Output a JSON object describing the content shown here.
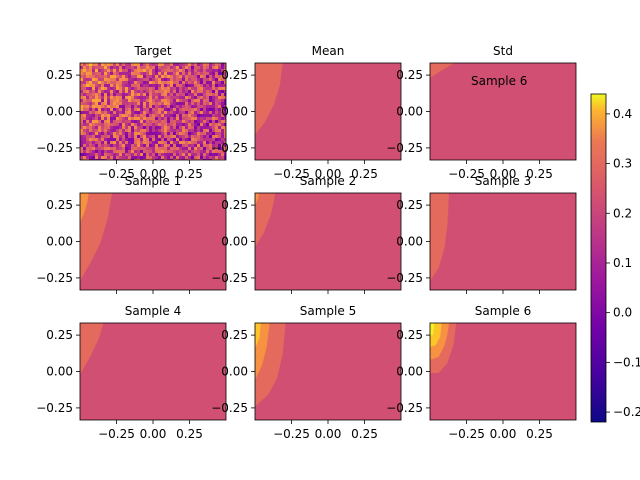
{
  "chart_data": {
    "type": "heatmap",
    "extent": {
      "x": [
        -0.5,
        0.5
      ],
      "y": [
        -0.333,
        0.333
      ]
    },
    "xticks": [
      -0.25,
      0.0,
      0.25
    ],
    "xtick_labels": [
      "−0.25",
      "0.00",
      "0.25"
    ],
    "yticks": [
      0.25,
      0.0,
      -0.25
    ],
    "ytick_labels": [
      "0.25",
      "0.00",
      "−0.25"
    ],
    "colormap": "plasma",
    "colorbar": {
      "range": [
        -0.22,
        0.44
      ],
      "ticks": [
        0.4,
        0.3,
        0.2,
        0.1,
        0.0,
        -0.1,
        -0.2
      ],
      "tick_labels": [
        "0.4",
        "0.3",
        "0.2",
        "0.1",
        "0.0",
        "−0.1",
        "−0.2"
      ]
    },
    "stray_label": "Sample 6",
    "panels": [
      {
        "title": "Target",
        "row": 0,
        "col": 0,
        "kind": "noise",
        "base": 0.1,
        "spread": 0.16,
        "show_xtick_labels": true,
        "levels": [],
        "boundaries": []
      },
      {
        "title": "Mean",
        "row": 0,
        "col": 1,
        "kind": "contour",
        "base": 0.13,
        "show_xtick_labels": true,
        "levels": [
          0.19
        ],
        "boundaries": [
          [
            [
              -0.5,
              -0.16
            ],
            [
              -0.43,
              -0.07
            ],
            [
              -0.37,
              0.05
            ],
            [
              -0.33,
              0.18
            ],
            [
              -0.31,
              0.333
            ]
          ]
        ]
      },
      {
        "title": "Std",
        "row": 0,
        "col": 2,
        "kind": "contour",
        "base": 0.13,
        "show_xtick_labels": true,
        "levels": [
          0.19
        ],
        "boundaries": [
          [
            [
              -0.5,
              0.23
            ],
            [
              -0.44,
              0.27
            ],
            [
              -0.37,
              0.31
            ],
            [
              -0.33,
              0.333
            ]
          ]
        ]
      },
      {
        "title": "Sample 1",
        "row": 1,
        "col": 0,
        "kind": "contour",
        "base": 0.13,
        "show_xtick_labels": false,
        "levels": [
          0.19,
          0.27
        ],
        "boundaries": [
          [
            [
              -0.5,
              -0.27
            ],
            [
              -0.43,
              -0.15
            ],
            [
              -0.36,
              -0.01
            ],
            [
              -0.31,
              0.16
            ],
            [
              -0.28,
              0.333
            ]
          ],
          [
            [
              -0.5,
              0.13
            ],
            [
              -0.47,
              0.2
            ],
            [
              -0.45,
              0.27
            ],
            [
              -0.44,
              0.333
            ]
          ]
        ]
      },
      {
        "title": "Sample 2",
        "row": 1,
        "col": 1,
        "kind": "contour",
        "base": 0.13,
        "show_xtick_labels": false,
        "levels": [
          0.19,
          0.27
        ],
        "boundaries": [
          [
            [
              -0.5,
              -0.04
            ],
            [
              -0.44,
              0.06
            ],
            [
              -0.39,
              0.19
            ],
            [
              -0.36,
              0.333
            ]
          ],
          [
            [
              -0.5,
              0.25
            ],
            [
              -0.48,
              0.29
            ],
            [
              -0.47,
              0.333
            ]
          ]
        ]
      },
      {
        "title": "Sample 3",
        "row": 1,
        "col": 2,
        "kind": "contour",
        "base": 0.13,
        "show_xtick_labels": false,
        "levels": [
          0.19
        ],
        "boundaries": [
          [
            [
              -0.5,
              -0.27
            ],
            [
              -0.44,
              -0.18
            ],
            [
              -0.4,
              -0.04
            ],
            [
              -0.38,
              0.12
            ],
            [
              -0.37,
              0.333
            ]
          ]
        ]
      },
      {
        "title": "Sample 4",
        "row": 2,
        "col": 0,
        "kind": "contour",
        "base": 0.13,
        "show_xtick_labels": true,
        "levels": [
          0.19
        ],
        "boundaries": [
          [
            [
              -0.5,
              -0.02
            ],
            [
              -0.43,
              0.1
            ],
            [
              -0.37,
              0.23
            ],
            [
              -0.34,
              0.333
            ]
          ]
        ]
      },
      {
        "title": "Sample 5",
        "row": 2,
        "col": 1,
        "kind": "contour",
        "base": 0.13,
        "show_xtick_labels": true,
        "levels": [
          0.19,
          0.27,
          0.36
        ],
        "boundaries": [
          [
            [
              -0.5,
              -0.24
            ],
            [
              -0.41,
              -0.16
            ],
            [
              -0.35,
              -0.05
            ],
            [
              -0.31,
              0.12
            ],
            [
              -0.29,
              0.333
            ]
          ],
          [
            [
              -0.5,
              -0.06
            ],
            [
              -0.45,
              0.05
            ],
            [
              -0.42,
              0.17
            ],
            [
              -0.4,
              0.333
            ]
          ],
          [
            [
              -0.5,
              0.16
            ],
            [
              -0.47,
              0.23
            ],
            [
              -0.46,
              0.333
            ]
          ]
        ]
      },
      {
        "title": "Sample 6",
        "row": 2,
        "col": 2,
        "kind": "contour",
        "base": 0.13,
        "show_xtick_labels": true,
        "levels": [
          0.19,
          0.27,
          0.36,
          0.43
        ],
        "boundaries": [
          [
            [
              -0.5,
              -0.01
            ],
            [
              -0.44,
              -0.01
            ],
            [
              -0.38,
              0.06
            ],
            [
              -0.34,
              0.18
            ],
            [
              -0.32,
              0.333
            ]
          ],
          [
            [
              -0.5,
              0.08
            ],
            [
              -0.44,
              0.1
            ],
            [
              -0.4,
              0.18
            ],
            [
              -0.38,
              0.26
            ],
            [
              -0.37,
              0.333
            ]
          ],
          [
            [
              -0.5,
              0.17
            ],
            [
              -0.46,
              0.18
            ],
            [
              -0.43,
              0.24
            ],
            [
              -0.42,
              0.333
            ]
          ],
          [
            [
              -0.5,
              0.25
            ],
            [
              -0.48,
              0.25
            ],
            [
              -0.47,
              0.333
            ]
          ]
        ]
      }
    ]
  }
}
